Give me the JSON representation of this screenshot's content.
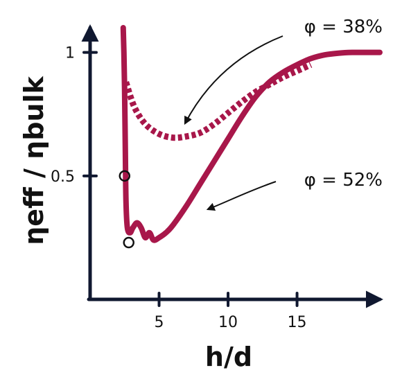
{
  "chart_data": {
    "type": "line",
    "xlabel": "h/d",
    "ylabel": "ηeff / ηbulk",
    "xlim": [
      0,
      21
    ],
    "ylim": [
      0,
      1.1
    ],
    "x_ticks": [
      {
        "value": 5,
        "label": "5"
      },
      {
        "value": 10,
        "label": "10"
      },
      {
        "value": 15,
        "label": "15"
      }
    ],
    "y_ticks": [
      {
        "value": 0.5,
        "label": "0.5"
      },
      {
        "value": 1,
        "label": "1"
      }
    ],
    "grid": false,
    "colors": {
      "series": "#a8174a",
      "axis": "#101830",
      "arrow": "#111111",
      "marker": "#111111"
    },
    "series": [
      {
        "name": "φ = 38%",
        "style": "dashed",
        "x": [
          2.6,
          3.2,
          4.0,
          5.0,
          6.0,
          7.0,
          8.0,
          9.0,
          10.0,
          11.0,
          12.0,
          13.0,
          14.0,
          15.0,
          16.0
        ],
        "y": [
          0.88,
          0.78,
          0.71,
          0.67,
          0.655,
          0.66,
          0.675,
          0.71,
          0.755,
          0.8,
          0.84,
          0.87,
          0.9,
          0.925,
          0.95
        ]
      },
      {
        "name": "φ = 52%",
        "style": "solid",
        "x": [
          2.4,
          2.45,
          2.5,
          2.55,
          2.6,
          2.7,
          2.9,
          3.1,
          3.4,
          3.7,
          4.0,
          4.3,
          4.6,
          5.0,
          5.5,
          6.0,
          7.0,
          8.0,
          9.0,
          10.0,
          11.0,
          12.0,
          13.0,
          14.0,
          15.0,
          16.0,
          17.0,
          18.0,
          19.0,
          20.0,
          21.0
        ],
        "y": [
          1.1,
          1.0,
          0.85,
          0.62,
          0.4,
          0.29,
          0.27,
          0.29,
          0.31,
          0.29,
          0.25,
          0.27,
          0.24,
          0.25,
          0.27,
          0.3,
          0.38,
          0.47,
          0.56,
          0.65,
          0.74,
          0.82,
          0.88,
          0.92,
          0.95,
          0.975,
          0.99,
          0.997,
          1.0,
          1.0,
          1.0
        ]
      }
    ],
    "markers": [
      {
        "x": 2.5,
        "y": 0.5
      },
      {
        "x": 2.8,
        "y": 0.23
      }
    ],
    "annotations": [
      {
        "text": "φ = 38%",
        "points_to": {
          "x": 6.5,
          "y": 0.72
        }
      },
      {
        "text": "φ = 52%",
        "points_to": {
          "x": 9.0,
          "y": 0.36
        }
      }
    ]
  }
}
